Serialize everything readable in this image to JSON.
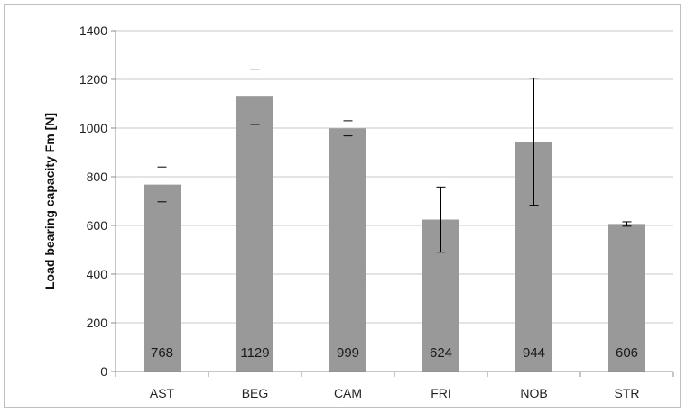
{
  "chart_data": {
    "type": "bar",
    "categories": [
      "AST",
      "BEG",
      "CAM",
      "FRI",
      "NOB",
      "STR"
    ],
    "values": [
      768,
      1129,
      999,
      624,
      944,
      606
    ],
    "error_bars": {
      "lower": [
        697,
        1015,
        968,
        490,
        683,
        597
      ],
      "upper": [
        840,
        1242,
        1030,
        758,
        1205,
        615
      ]
    },
    "data_labels": [
      "768",
      "1129",
      "999",
      "624",
      "944",
      "606"
    ],
    "title": "",
    "xlabel": "",
    "ylabel": "Load bearing capacity Fm [N]",
    "ylim": [
      0,
      1400
    ],
    "yticks": [
      0,
      200,
      400,
      600,
      800,
      1000,
      1200,
      1400
    ],
    "ytick_labels": [
      "0",
      "200",
      "400",
      "600",
      "800",
      "1000",
      "1200",
      "1400"
    ],
    "grid": true,
    "legend": "none",
    "colors": {
      "bar": "#999999",
      "grid": "#c8c8c8",
      "axis": "#8c8c8c",
      "error": "#000000"
    }
  }
}
